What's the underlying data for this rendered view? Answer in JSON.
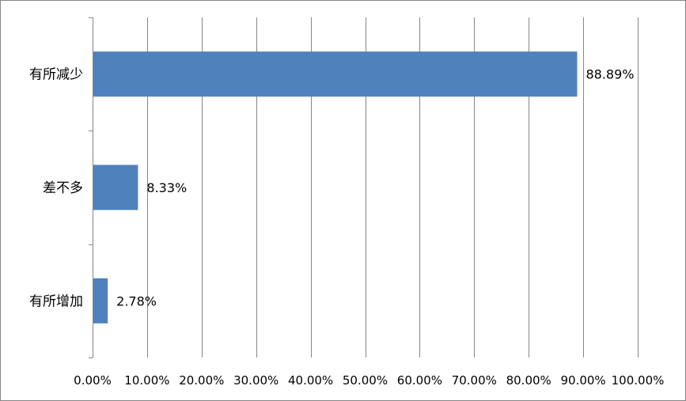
{
  "chart_data": {
    "type": "bar",
    "orientation": "horizontal",
    "categories": [
      "有所减少",
      "差不多",
      "有所增加"
    ],
    "values": [
      88.89,
      8.33,
      2.78
    ],
    "data_labels": [
      "88.89%",
      "8.33%",
      "2.78%"
    ],
    "xlim": [
      0,
      100
    ],
    "x_ticks": [
      0,
      10,
      20,
      30,
      40,
      50,
      60,
      70,
      80,
      90,
      100
    ],
    "x_tick_labels": [
      "0.00%",
      "10.00%",
      "20.00%",
      "30.00%",
      "40.00%",
      "50.00%",
      "60.00%",
      "70.00%",
      "80.00%",
      "90.00%",
      "100.00%"
    ],
    "grid": "vertical",
    "legend": "none",
    "bar_color": "#4f81bd",
    "grid_color": "#868686"
  }
}
